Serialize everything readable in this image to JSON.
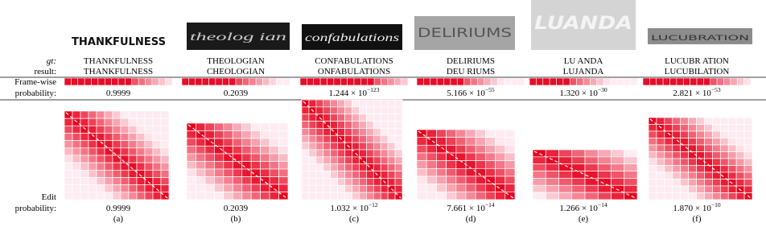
{
  "row_labels": {
    "gt": "gt:",
    "result": "result:",
    "frame": [
      "Frame-wise",
      "probability:"
    ],
    "edit": [
      "Edit",
      "probability:"
    ]
  },
  "columns": [
    {
      "image_text": "THANKFULNESS",
      "gt": "THANKFULNESS",
      "result": "THANKFULNESS",
      "frame_prob": {
        "text": "0.9999"
      },
      "edit_prob": {
        "text": "0.9999"
      },
      "label": "(a)"
    },
    {
      "image_text": "theolog ian",
      "gt": "THEOLOGIAN",
      "result": "CHEOLOGIAN",
      "frame_prob": {
        "text": "0.2039"
      },
      "edit_prob": {
        "text": "0.2039"
      },
      "label": "(b)"
    },
    {
      "image_text": "confabulations",
      "gt": "CONFABULATIONS",
      "result": "ONFABULATIONS",
      "frame_prob": {
        "text": "1.244 × 10",
        "exp": "−123"
      },
      "edit_prob": {
        "text": "1.032 × 10",
        "exp": "−12"
      },
      "label": "(c)"
    },
    {
      "image_text": "DELIRIUMS",
      "gt": "DELIRIUMS",
      "result": "DEU RIUMS",
      "frame_prob": {
        "text": "5.166 × 10",
        "exp": "−55"
      },
      "edit_prob": {
        "text": "7.661 × 10",
        "exp": "−14"
      },
      "label": "(d)"
    },
    {
      "image_text": "LUANDA",
      "gt": "LU ANDA",
      "result": "LUJANDA",
      "frame_prob": {
        "text": "1.320 × 10",
        "exp": "−30"
      },
      "edit_prob": {
        "text": "1.266 × 10",
        "exp": "−14"
      },
      "label": "(e)"
    },
    {
      "image_text": "LUCUBRATION",
      "gt": "LUCUBR ATION",
      "result": "LUCUBILATION",
      "frame_prob": {
        "text": "2.821 × 10",
        "exp": "−53"
      },
      "edit_prob": {
        "text": "1.870 × 10",
        "exp": "−10"
      },
      "label": "(f)"
    }
  ]
}
